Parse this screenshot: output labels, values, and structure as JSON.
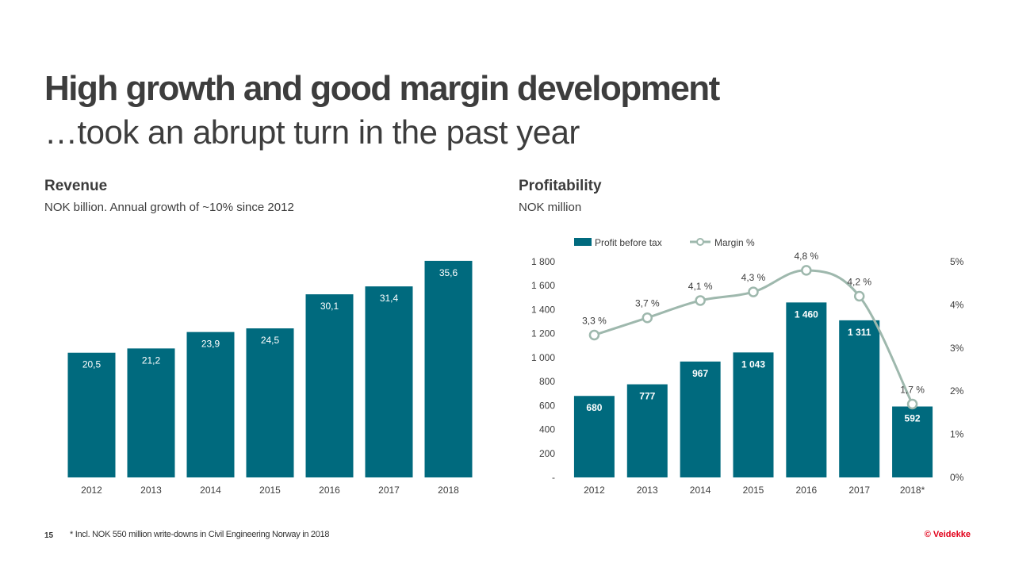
{
  "slide": {
    "title": "High growth and good margin development",
    "subtitle": "…took an abrupt turn in the past year",
    "page_number": "15",
    "footnote": "* Incl. NOK 550 million write-downs in Civil Engineering Norway in 2018",
    "brand": "© Veidekke"
  },
  "colors": {
    "bar": "#006a7e",
    "line": "#9eb8ad",
    "text": "#3c3c3c",
    "brand": "#e2001a"
  },
  "chart_data": [
    {
      "type": "bar",
      "title": "Revenue",
      "subtitle": "NOK billion. Annual growth of ~10% since 2012",
      "categories": [
        "2012",
        "2013",
        "2014",
        "2015",
        "2016",
        "2017",
        "2018"
      ],
      "values": [
        20.5,
        21.2,
        23.9,
        24.5,
        30.1,
        31.4,
        35.6
      ],
      "value_labels": [
        "20,5",
        "21,2",
        "23,9",
        "24,5",
        "30,1",
        "31,4",
        "35,6"
      ],
      "ylim": [
        0,
        36.5
      ],
      "xlabel": "",
      "ylabel": ""
    },
    {
      "type": "bar",
      "title": "Profitability",
      "subtitle": "NOK million",
      "categories": [
        "2012",
        "2013",
        "2014",
        "2015",
        "2016",
        "2017",
        "2018*"
      ],
      "series": [
        {
          "name": "Profit before tax",
          "type": "bar",
          "axis": "left",
          "values": [
            680,
            777,
            967,
            1043,
            1460,
            1311,
            592
          ],
          "value_labels": [
            "680",
            "777",
            "967",
            "1 043",
            "1 460",
            "1 311",
            "592"
          ]
        },
        {
          "name": "Margin %",
          "type": "line",
          "axis": "right",
          "values": [
            3.3,
            3.7,
            4.1,
            4.3,
            4.8,
            4.2,
            1.7
          ],
          "value_labels": [
            "3,3 %",
            "3,7 %",
            "4,1 %",
            "4,3 %",
            "4,8 %",
            "4,2 %",
            "1,7 %"
          ]
        }
      ],
      "y_left": {
        "range": [
          0,
          1800
        ],
        "ticks": [
          0,
          200,
          400,
          600,
          800,
          1000,
          1200,
          1400,
          1600,
          1800
        ],
        "tick_labels": [
          "-",
          "200",
          "400",
          "600",
          "800",
          "1 000",
          "1 200",
          "1 400",
          "1 600",
          "1 800"
        ]
      },
      "y_right": {
        "range": [
          0,
          5
        ],
        "ticks": [
          0,
          1,
          2,
          3,
          4,
          5
        ],
        "tick_labels": [
          "0%",
          "1%",
          "2%",
          "3%",
          "4%",
          "5%"
        ]
      },
      "legend": "top-left"
    }
  ]
}
